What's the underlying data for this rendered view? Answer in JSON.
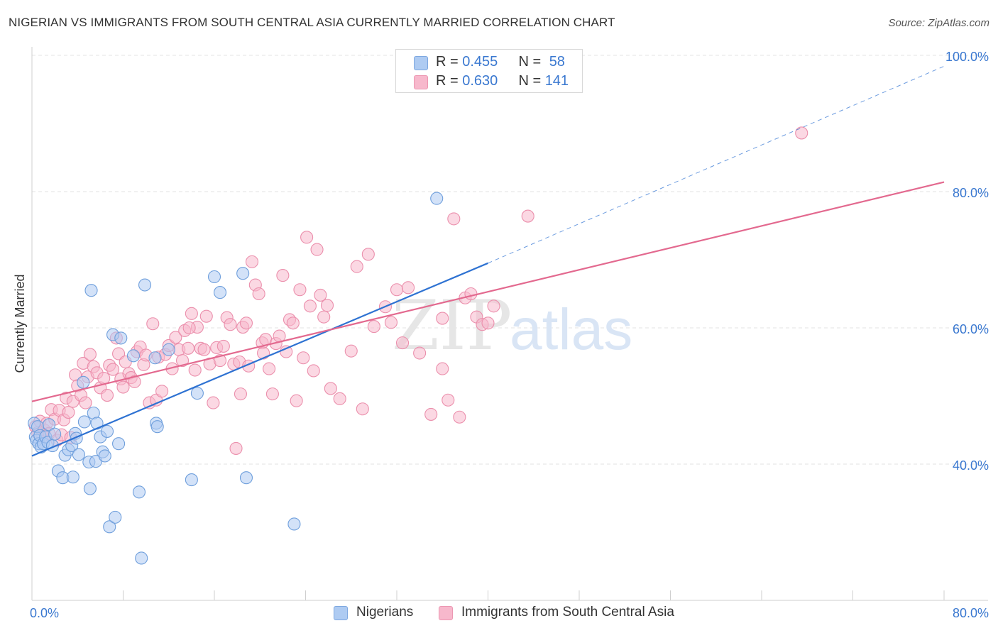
{
  "header": {
    "title": "NIGERIAN VS IMMIGRANTS FROM SOUTH CENTRAL ASIA CURRENTLY MARRIED CORRELATION CHART",
    "source": "Source: ZipAtlas.com"
  },
  "watermark": {
    "zip": "ZIP",
    "atlas": "atlas"
  },
  "legend_top": {
    "rows": [
      {
        "r_label": "R = ",
        "r_value": "0.455",
        "n_label": "N = ",
        "n_value": "58",
        "color": "#aecbf2"
      },
      {
        "r_label": "R = ",
        "r_value": "0.630",
        "n_label": "N = ",
        "n_value": "141",
        "color": "#f7b8cc"
      }
    ]
  },
  "legend_bottom": {
    "items": [
      {
        "label": "Nigerians",
        "color": "#aecbf2"
      },
      {
        "label": "Immigrants from South Central Asia",
        "color": "#f7b8cc"
      }
    ]
  },
  "colors": {
    "blue_fill": "#aecbf2",
    "blue_stroke": "#6f9fdc",
    "blue_line": "#2e72d2",
    "pink_fill": "#f7b8cc",
    "pink_stroke": "#eb8fac",
    "pink_line": "#e3698f",
    "tick_label": "#3a78d0"
  },
  "chart_data": {
    "type": "scatter",
    "ylabel": "Currently Married",
    "xlim": [
      0,
      80
    ],
    "ylim": [
      20,
      100
    ],
    "x_tick_labels": [
      {
        "value": 0,
        "label": "0.0%"
      },
      {
        "value": 80,
        "label": "80.0%"
      }
    ],
    "y_tick_labels": [
      {
        "value": 40,
        "label": "40.0%"
      },
      {
        "value": 60,
        "label": "60.0%"
      },
      {
        "value": 80,
        "label": "80.0%"
      },
      {
        "value": 100,
        "label": "100.0%"
      }
    ],
    "grid": true,
    "legend_position": "top-center",
    "series": [
      {
        "name": "Nigerians",
        "R": 0.455,
        "N": 58,
        "trend": {
          "x0": 0,
          "y0": 41.2,
          "x1": 40,
          "y1": 69.5,
          "dashed_to_x": 80,
          "dashed_to_y": 98.4
        },
        "points": [
          [
            0.2,
            46.0
          ],
          [
            0.3,
            44.0
          ],
          [
            0.4,
            43.5
          ],
          [
            0.5,
            45.5
          ],
          [
            0.6,
            43.0
          ],
          [
            0.7,
            44.2
          ],
          [
            0.8,
            42.5
          ],
          [
            1.0,
            43.0
          ],
          [
            1.2,
            44.0
          ],
          [
            1.4,
            43.2
          ],
          [
            1.5,
            45.8
          ],
          [
            1.8,
            42.7
          ],
          [
            2.0,
            44.4
          ],
          [
            2.3,
            39.0
          ],
          [
            2.7,
            38.0
          ],
          [
            2.9,
            41.3
          ],
          [
            3.2,
            42.1
          ],
          [
            3.5,
            42.7
          ],
          [
            3.6,
            38.1
          ],
          [
            3.8,
            44.5
          ],
          [
            3.9,
            43.8
          ],
          [
            4.1,
            41.4
          ],
          [
            4.5,
            52.0
          ],
          [
            4.6,
            46.2
          ],
          [
            5.0,
            40.3
          ],
          [
            5.1,
            36.4
          ],
          [
            5.2,
            65.5
          ],
          [
            5.4,
            47.5
          ],
          [
            5.6,
            40.4
          ],
          [
            5.7,
            46.0
          ],
          [
            6.0,
            44.0
          ],
          [
            6.2,
            41.8
          ],
          [
            6.4,
            41.2
          ],
          [
            6.6,
            44.8
          ],
          [
            6.8,
            30.8
          ],
          [
            7.1,
            59.0
          ],
          [
            7.3,
            32.2
          ],
          [
            7.6,
            43.0
          ],
          [
            7.8,
            58.5
          ],
          [
            8.9,
            55.9
          ],
          [
            9.4,
            35.9
          ],
          [
            9.6,
            26.2
          ],
          [
            9.9,
            66.3
          ],
          [
            10.8,
            55.6
          ],
          [
            10.9,
            46.0
          ],
          [
            11.0,
            45.5
          ],
          [
            12.0,
            56.8
          ],
          [
            14.0,
            37.7
          ],
          [
            14.5,
            50.4
          ],
          [
            16.0,
            67.5
          ],
          [
            16.5,
            65.2
          ],
          [
            18.5,
            68.0
          ],
          [
            18.8,
            38.0
          ],
          [
            23.0,
            31.2
          ],
          [
            35.5,
            79.0
          ]
        ]
      },
      {
        "name": "Immigrants from South Central Asia",
        "R": 0.63,
        "N": 141,
        "trend": {
          "x0": 0,
          "y0": 49.2,
          "x1": 80,
          "y1": 81.4
        },
        "points": [
          [
            0.3,
            45.5
          ],
          [
            0.5,
            44.6
          ],
          [
            0.7,
            46.3
          ],
          [
            0.9,
            44.1
          ],
          [
            1.1,
            45.0
          ],
          [
            1.3,
            46.0
          ],
          [
            1.5,
            44.5
          ],
          [
            1.7,
            48.0
          ],
          [
            2.0,
            46.6
          ],
          [
            2.2,
            43.5
          ],
          [
            2.4,
            47.9
          ],
          [
            2.6,
            44.3
          ],
          [
            2.8,
            46.5
          ],
          [
            3.0,
            49.7
          ],
          [
            3.2,
            47.6
          ],
          [
            3.4,
            43.9
          ],
          [
            3.6,
            49.2
          ],
          [
            3.8,
            53.1
          ],
          [
            4.0,
            51.5
          ],
          [
            4.3,
            50.1
          ],
          [
            4.5,
            54.8
          ],
          [
            4.7,
            49.0
          ],
          [
            4.9,
            52.8
          ],
          [
            5.1,
            56.1
          ],
          [
            5.4,
            54.3
          ],
          [
            5.7,
            53.4
          ],
          [
            6.0,
            51.2
          ],
          [
            6.3,
            52.6
          ],
          [
            6.6,
            50.1
          ],
          [
            6.8,
            54.5
          ],
          [
            7.1,
            53.9
          ],
          [
            7.4,
            58.5
          ],
          [
            7.6,
            56.2
          ],
          [
            7.8,
            52.5
          ],
          [
            8.0,
            51.3
          ],
          [
            8.2,
            55.0
          ],
          [
            8.5,
            53.3
          ],
          [
            8.7,
            52.7
          ],
          [
            9.0,
            52.1
          ],
          [
            9.2,
            56.5
          ],
          [
            9.5,
            57.2
          ],
          [
            9.8,
            54.6
          ],
          [
            10.0,
            56.0
          ],
          [
            10.3,
            49.0
          ],
          [
            10.6,
            60.6
          ],
          [
            10.9,
            49.4
          ],
          [
            11.1,
            55.7
          ],
          [
            11.4,
            50.7
          ],
          [
            11.7,
            56.1
          ],
          [
            12.0,
            57.4
          ],
          [
            12.3,
            54.0
          ],
          [
            12.6,
            58.6
          ],
          [
            12.9,
            56.8
          ],
          [
            13.2,
            55.2
          ],
          [
            13.4,
            59.6
          ],
          [
            13.7,
            57.0
          ],
          [
            14.0,
            62.1
          ],
          [
            14.3,
            53.8
          ],
          [
            14.5,
            60.1
          ],
          [
            14.8,
            57.0
          ],
          [
            15.1,
            56.8
          ],
          [
            15.3,
            61.7
          ],
          [
            15.6,
            54.7
          ],
          [
            15.9,
            49.0
          ],
          [
            16.2,
            57.1
          ],
          [
            16.5,
            55.2
          ],
          [
            16.8,
            57.3
          ],
          [
            17.1,
            61.5
          ],
          [
            17.4,
            60.5
          ],
          [
            17.7,
            54.7
          ],
          [
            17.9,
            42.3
          ],
          [
            18.2,
            55.0
          ],
          [
            18.5,
            60.1
          ],
          [
            18.8,
            60.7
          ],
          [
            19.0,
            54.4
          ],
          [
            19.3,
            69.7
          ],
          [
            19.6,
            66.3
          ],
          [
            19.9,
            65.0
          ],
          [
            20.2,
            57.8
          ],
          [
            20.5,
            58.3
          ],
          [
            20.8,
            54.0
          ],
          [
            21.1,
            50.3
          ],
          [
            21.4,
            57.7
          ],
          [
            21.7,
            58.8
          ],
          [
            22.0,
            67.7
          ],
          [
            22.3,
            56.5
          ],
          [
            22.6,
            61.2
          ],
          [
            22.9,
            60.7
          ],
          [
            23.2,
            49.3
          ],
          [
            23.5,
            65.6
          ],
          [
            23.8,
            55.6
          ],
          [
            24.1,
            73.3
          ],
          [
            24.4,
            63.2
          ],
          [
            24.7,
            53.7
          ],
          [
            25.0,
            71.5
          ],
          [
            25.3,
            64.8
          ],
          [
            25.6,
            61.6
          ],
          [
            25.9,
            63.3
          ],
          [
            26.2,
            51.1
          ],
          [
            27.0,
            49.6
          ],
          [
            28.0,
            56.6
          ],
          [
            28.5,
            69.0
          ],
          [
            29.0,
            48.1
          ],
          [
            29.5,
            70.8
          ],
          [
            30.0,
            60.2
          ],
          [
            31.0,
            63.1
          ],
          [
            31.5,
            60.8
          ],
          [
            32.0,
            65.6
          ],
          [
            32.5,
            57.8
          ],
          [
            33.0,
            65.9
          ],
          [
            34.0,
            56.3
          ],
          [
            35.0,
            47.3
          ],
          [
            36.0,
            61.4
          ],
          [
            36.5,
            49.4
          ],
          [
            37.0,
            76.0
          ],
          [
            37.5,
            46.9
          ],
          [
            38.0,
            64.4
          ],
          [
            38.5,
            65.0
          ],
          [
            39.0,
            61.6
          ],
          [
            39.5,
            60.5
          ],
          [
            40.0,
            60.7
          ],
          [
            40.5,
            63.2
          ],
          [
            43.5,
            76.4
          ],
          [
            67.5,
            88.6
          ],
          [
            36.0,
            54.0
          ],
          [
            18.3,
            50.3
          ],
          [
            20.3,
            56.3
          ],
          [
            13.8,
            60.0
          ]
        ]
      }
    ]
  }
}
